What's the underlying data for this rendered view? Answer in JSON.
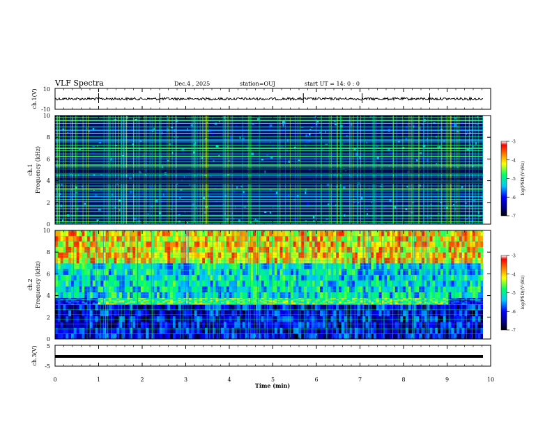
{
  "header": {
    "title": "VLF Spectra",
    "date": "Dec.4 , 2025",
    "station": "station=OUJ",
    "start": "start UT = 14: 0 : 0"
  },
  "panels": [
    {
      "id": "ch1-waveform",
      "ylabel": "ch.1(V)",
      "ylim": [
        -10,
        10
      ],
      "ticks": [
        "10",
        "-10"
      ]
    },
    {
      "id": "ch1-spectrogram",
      "ylabel_top": "ch.1",
      "ylabel": "Frequency (kHz)",
      "ylim": [
        0,
        10
      ],
      "ticks": [
        "0",
        "2",
        "4",
        "6",
        "8",
        "10"
      ]
    },
    {
      "id": "ch2-spectrogram",
      "ylabel_top": "ch.2",
      "ylabel": "Frequency (kHz)",
      "ylim": [
        0,
        10
      ],
      "ticks": [
        "0",
        "2",
        "4",
        "6",
        "8",
        "10"
      ]
    },
    {
      "id": "ch3-waveform",
      "ylabel": "ch.3(V)",
      "ylim": [
        -5,
        5
      ],
      "ticks": [
        "5",
        "-5"
      ]
    }
  ],
  "colorbar": {
    "label": "log(PSD)(V²/Hz)",
    "ticks": [
      "-3",
      "-4",
      "-5",
      "-6",
      "-7"
    ]
  },
  "xaxis": {
    "label": "Time (min)",
    "ticks": [
      "0",
      "1",
      "2",
      "3",
      "4",
      "5",
      "6",
      "7",
      "8",
      "9",
      "10"
    ]
  },
  "chart_data": {
    "type": "heatmap",
    "title": "VLF Spectra",
    "xlabel": "Time (min)",
    "xlim": [
      0,
      10
    ],
    "data_end_min": 9.83,
    "ch1": {
      "ylabel": "Frequency (kHz)",
      "ylim": [
        0,
        10
      ],
      "zlim": [
        -7,
        -3
      ],
      "background_logpsd": -6.3,
      "lines_khz": [
        0.1,
        0.25,
        0.55,
        0.85,
        1.2,
        1.45,
        1.75,
        2.1,
        2.3,
        2.6,
        2.8,
        3.1,
        3.3,
        3.55,
        3.8,
        4.05,
        4.3,
        4.5,
        4.7,
        5.1,
        5.3,
        5.5,
        5.8,
        6.05,
        6.3,
        6.5,
        6.8,
        7.05,
        7.3,
        7.6,
        7.8,
        8.1,
        8.4,
        8.7,
        9.0,
        9.3,
        9.6,
        9.85
      ],
      "lines_logpsd": -5.0,
      "impulsive_logpsd": -4.8,
      "waveform_amplitude_v": 1.2
    },
    "ch2": {
      "ylabel": "Frequency (kHz)",
      "ylim": [
        0,
        10
      ],
      "zlim": [
        -7,
        -3
      ],
      "band_logpsd": [
        {
          "from_khz": 0,
          "to_khz": 3.2,
          "logpsd": -6.2
        },
        {
          "from_khz": 3.2,
          "to_khz": 3.8,
          "logpsd": -4.7
        },
        {
          "from_khz": 3.8,
          "to_khz": 7.0,
          "logpsd": -5.2
        },
        {
          "from_khz": 7.0,
          "to_khz": 10,
          "logpsd": -4.0
        }
      ],
      "band_start_min": 0.95,
      "band_end_min": 9.0
    },
    "ch3": {
      "ylabel": "ch.3(V)",
      "ylim": [
        -5,
        5
      ],
      "level_v": 0
    }
  }
}
